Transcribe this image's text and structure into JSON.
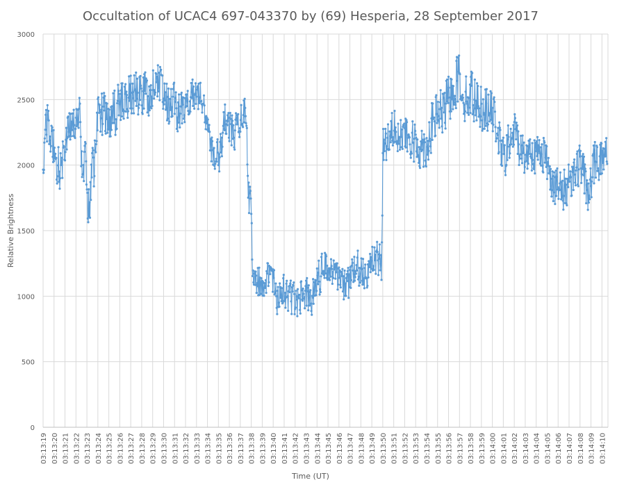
{
  "chart_data": {
    "type": "line",
    "title": "Occultation of UCAC4 697-043370 by (69) Hesperia, 28 September 2017",
    "xlabel": "Time (UT)",
    "ylabel": "Relative Brightness",
    "ylim": [
      0,
      3000
    ],
    "yticks": [
      0,
      500,
      1000,
      1500,
      2000,
      2500,
      3000
    ],
    "xticks": [
      "03:13:19",
      "03:13:20",
      "03:13:21",
      "03:13:22",
      "03:13:23",
      "03:13:24",
      "03:13:25",
      "03:13:26",
      "03:13:27",
      "03:13:28",
      "03:13:29",
      "03:13:30",
      "03:13:31",
      "03:13:32",
      "03:13:33",
      "03:13:34",
      "03:13:35",
      "03:13:36",
      "03:13:37",
      "03:13:38",
      "03:13:39",
      "03:13:40",
      "03:13:41",
      "03:13:42",
      "03:13:43",
      "03:13:44",
      "03:13:45",
      "03:13:46",
      "03:13:47",
      "03:13:48",
      "03:13:49",
      "03:13:50",
      "03:13:51",
      "03:13:52",
      "03:13:53",
      "03:13:54",
      "03:13:55",
      "03:13:56",
      "03:13:57",
      "03:13:58",
      "03:13:59",
      "03:14:00",
      "03:14:01",
      "03:14:02",
      "03:14:03",
      "03:14:04",
      "03:14:05",
      "03:14:06",
      "03:14:07",
      "03:14:08",
      "03:14:09",
      "03:14:10"
    ],
    "grid": true,
    "legend": "none",
    "color": "#5b9bd5",
    "samples_per_second": 25,
    "series": [
      {
        "keyframes": [
          [
            "03:13:19.0",
            2000
          ],
          [
            "03:13:19.3",
            2380
          ],
          [
            "03:13:19.9",
            2150
          ],
          [
            "03:13:20.5",
            1950
          ],
          [
            "03:13:21.2",
            2200
          ],
          [
            "03:13:21.8",
            2350
          ],
          [
            "03:13:22.3",
            2400
          ],
          [
            "03:13:22.55",
            2000
          ],
          [
            "03:13:22.9",
            2050
          ],
          [
            "03:13:23.0",
            1700
          ],
          [
            "03:13:23.3",
            1680
          ],
          [
            "03:13:23.4",
            2000
          ],
          [
            "03:13:23.7",
            2000
          ],
          [
            "03:13:24.0",
            2500
          ],
          [
            "03:13:24.5",
            2350
          ],
          [
            "03:13:25.0",
            2300
          ],
          [
            "03:13:25.5",
            2400
          ],
          [
            "03:13:26.0",
            2450
          ],
          [
            "03:13:27.0",
            2550
          ],
          [
            "03:13:28.0",
            2550
          ],
          [
            "03:13:29.0",
            2550
          ],
          [
            "03:13:29.6",
            2650
          ],
          [
            "03:13:30.0",
            2550
          ],
          [
            "03:13:30.5",
            2420
          ],
          [
            "03:13:31.0",
            2450
          ],
          [
            "03:13:31.5",
            2400
          ],
          [
            "03:13:32.0",
            2500
          ],
          [
            "03:13:32.5",
            2550
          ],
          [
            "03:13:33.0",
            2550
          ],
          [
            "03:13:33.5",
            2450
          ],
          [
            "03:13:34.0",
            2350
          ],
          [
            "03:13:34.4",
            2150
          ],
          [
            "03:13:34.8",
            2050
          ],
          [
            "03:13:35.2",
            2100
          ],
          [
            "03:13:35.6",
            2400
          ],
          [
            "03:13:36.0",
            2300
          ],
          [
            "03:13:36.5",
            2250
          ],
          [
            "03:13:37.0",
            2300
          ],
          [
            "03:13:37.3",
            2450
          ],
          [
            "03:13:37.55",
            2450
          ],
          [
            "03:13:37.7",
            1750
          ],
          [
            "03:13:38.0",
            1700
          ],
          [
            "03:13:38.15",
            1100
          ],
          [
            "03:13:39.0",
            1100
          ],
          [
            "03:13:39.5",
            1150
          ],
          [
            "03:13:40.0",
            1150
          ],
          [
            "03:13:40.4",
            950
          ],
          [
            "03:13:41.0",
            1050
          ],
          [
            "03:13:42.0",
            950
          ],
          [
            "03:13:42.8",
            1050
          ],
          [
            "03:13:43.5",
            1000
          ],
          [
            "03:13:44.0",
            1100
          ],
          [
            "03:13:44.5",
            1200
          ],
          [
            "03:13:45.0",
            1250
          ],
          [
            "03:13:45.5",
            1200
          ],
          [
            "03:13:46.0",
            1100
          ],
          [
            "03:13:46.5",
            1100
          ],
          [
            "03:13:47.0",
            1100
          ],
          [
            "03:13:47.5",
            1200
          ],
          [
            "03:13:48.0",
            1200
          ],
          [
            "03:13:48.5",
            1200
          ],
          [
            "03:13:49.0",
            1250
          ],
          [
            "03:13:49.5",
            1300
          ],
          [
            "03:13:49.9",
            1200
          ],
          [
            "03:13:50.0",
            2150
          ],
          [
            "03:13:50.5",
            2200
          ],
          [
            "03:13:51.0",
            2350
          ],
          [
            "03:13:51.5",
            2250
          ],
          [
            "03:13:52.0",
            2200
          ],
          [
            "03:13:53.0",
            2150
          ],
          [
            "03:13:54.0",
            2150
          ],
          [
            "03:13:54.5",
            2300
          ],
          [
            "03:13:55.0",
            2400
          ],
          [
            "03:13:55.5",
            2400
          ],
          [
            "03:13:56.0",
            2500
          ],
          [
            "03:13:56.5",
            2600
          ],
          [
            "03:13:57.0",
            2700
          ],
          [
            "03:13:57.3",
            2550
          ],
          [
            "03:13:57.6",
            2500
          ],
          [
            "03:13:58.0",
            2550
          ],
          [
            "03:13:58.5",
            2500
          ],
          [
            "03:13:59.0",
            2450
          ],
          [
            "03:14:00.0",
            2400
          ],
          [
            "03:14:00.4",
            2300
          ],
          [
            "03:14:00.8",
            2100
          ],
          [
            "03:14:01.0",
            2050
          ],
          [
            "03:14:01.5",
            2150
          ],
          [
            "03:14:02.0",
            2250
          ],
          [
            "03:14:02.5",
            2150
          ],
          [
            "03:14:03.0",
            2050
          ],
          [
            "03:14:03.5",
            2150
          ],
          [
            "03:14:04.0",
            2050
          ],
          [
            "03:14:04.5",
            2150
          ],
          [
            "03:14:05.0",
            2000
          ],
          [
            "03:14:05.5",
            1900
          ],
          [
            "03:14:06.0",
            1800
          ],
          [
            "03:14:06.5",
            1800
          ],
          [
            "03:14:07.0",
            1900
          ],
          [
            "03:14:07.5",
            1950
          ],
          [
            "03:14:08.0",
            2000
          ],
          [
            "03:14:08.3",
            1950
          ],
          [
            "03:14:08.6",
            1800
          ],
          [
            "03:14:09.0",
            1850
          ],
          [
            "03:14:09.4",
            2050
          ],
          [
            "03:14:10.0",
            2050
          ],
          [
            "03:14:10.5",
            2100
          ]
        ],
        "noise_amplitude": [
          [
            "03:13:19.0",
            190
          ],
          [
            "03:13:22.5",
            170
          ],
          [
            "03:13:24.0",
            220
          ],
          [
            "03:13:28.0",
            200
          ],
          [
            "03:13:38.0",
            150
          ],
          [
            "03:13:49.5",
            160
          ],
          [
            "03:13:50.0",
            190
          ],
          [
            "03:13:57.0",
            220
          ],
          [
            "03:14:00.0",
            190
          ],
          [
            "03:14:10.5",
            190
          ]
        ]
      }
    ]
  }
}
